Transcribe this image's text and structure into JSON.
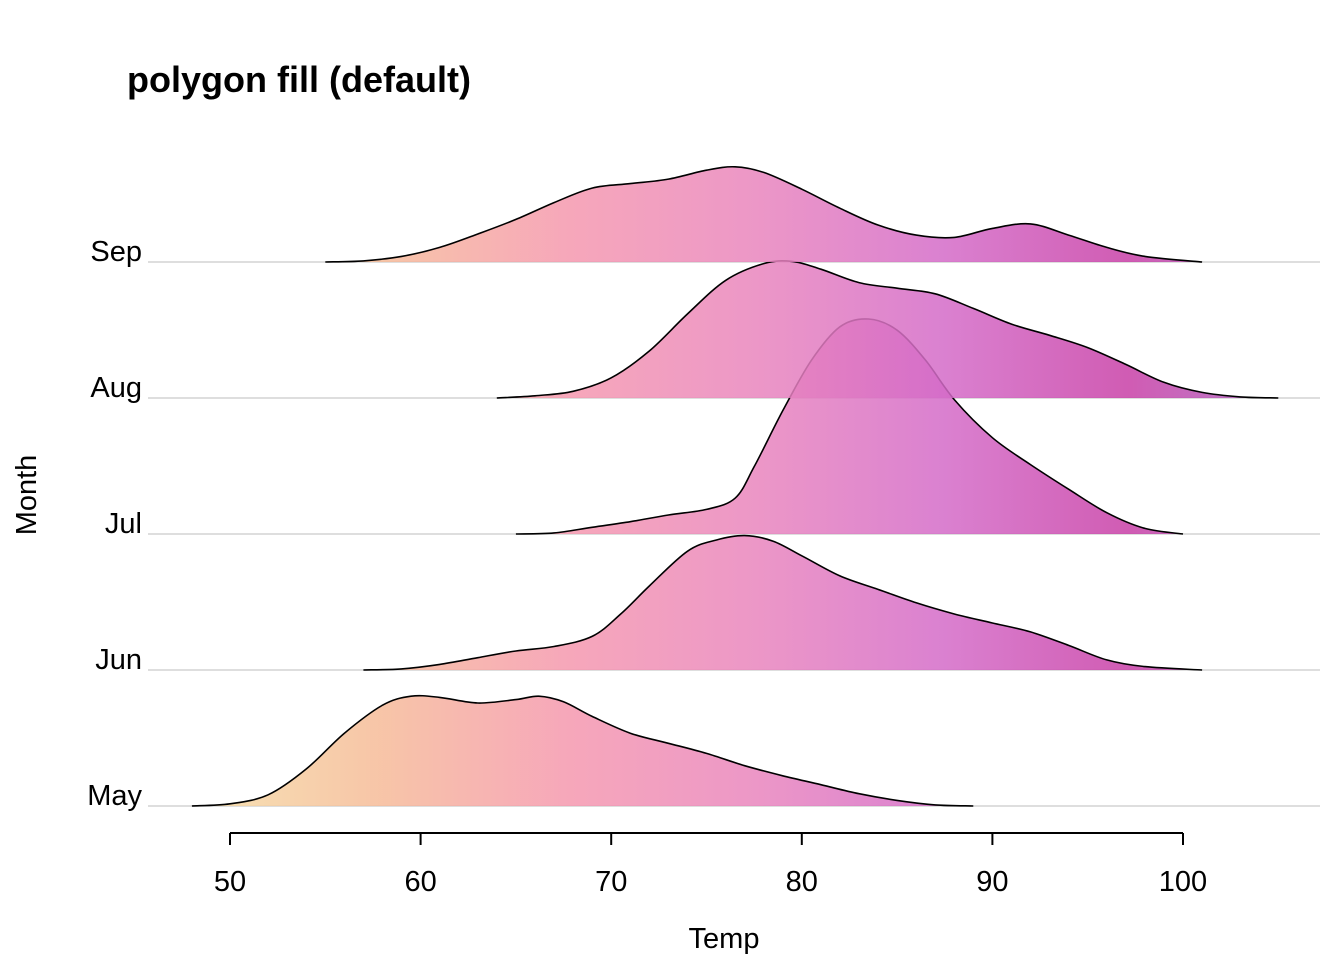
{
  "chart_data": {
    "type": "area",
    "title": "polygon fill (default)",
    "xlabel": "Temp",
    "ylabel": "Month",
    "xlim": [
      48,
      107
    ],
    "x_ticks": [
      50,
      60,
      70,
      80,
      90,
      100
    ],
    "x_tick_labels": [
      "50",
      "60",
      "70",
      "80",
      "90",
      "100"
    ],
    "categories": [
      "May",
      "Jun",
      "Jul",
      "Aug",
      "Sep"
    ],
    "colormap": [
      "#f5dea6",
      "#f6bb98",
      "#f598ae",
      "#e985bd",
      "#d46bc8",
      "#c83fa6",
      "#a56fc8"
    ],
    "fill_opacity": 0.85,
    "series": [
      {
        "name": "May",
        "points": [
          [
            48,
            0
          ],
          [
            50,
            0.02
          ],
          [
            52,
            0.1
          ],
          [
            54,
            0.33
          ],
          [
            56,
            0.65
          ],
          [
            58,
            0.9
          ],
          [
            59.5,
            0.98
          ],
          [
            61,
            0.97
          ],
          [
            63,
            0.92
          ],
          [
            65,
            0.95
          ],
          [
            66.2,
            0.98
          ],
          [
            67.5,
            0.93
          ],
          [
            69,
            0.8
          ],
          [
            71,
            0.65
          ],
          [
            73,
            0.56
          ],
          [
            75,
            0.47
          ],
          [
            77,
            0.36
          ],
          [
            79,
            0.27
          ],
          [
            81,
            0.19
          ],
          [
            83,
            0.11
          ],
          [
            85,
            0.05
          ],
          [
            87,
            0.01
          ],
          [
            89,
            0
          ]
        ]
      },
      {
        "name": "Jun",
        "points": [
          [
            57,
            0
          ],
          [
            59,
            0.01
          ],
          [
            61,
            0.05
          ],
          [
            63,
            0.11
          ],
          [
            65,
            0.17
          ],
          [
            67,
            0.21
          ],
          [
            69,
            0.3
          ],
          [
            70.5,
            0.5
          ],
          [
            72,
            0.75
          ],
          [
            74,
            1.06
          ],
          [
            75.5,
            1.16
          ],
          [
            77,
            1.2
          ],
          [
            78.5,
            1.15
          ],
          [
            80,
            1.02
          ],
          [
            82,
            0.84
          ],
          [
            84,
            0.72
          ],
          [
            86,
            0.6
          ],
          [
            88,
            0.5
          ],
          [
            90,
            0.42
          ],
          [
            92,
            0.34
          ],
          [
            94,
            0.22
          ],
          [
            96,
            0.09
          ],
          [
            98,
            0.03
          ],
          [
            101,
            0
          ]
        ]
      },
      {
        "name": "Jul",
        "points": [
          [
            65,
            0
          ],
          [
            67,
            0.01
          ],
          [
            69,
            0.06
          ],
          [
            71,
            0.11
          ],
          [
            73,
            0.17
          ],
          [
            75,
            0.22
          ],
          [
            76.5,
            0.32
          ],
          [
            77.5,
            0.6
          ],
          [
            79,
            1.1
          ],
          [
            80.5,
            1.55
          ],
          [
            82,
            1.85
          ],
          [
            83.5,
            1.92
          ],
          [
            85,
            1.82
          ],
          [
            86.5,
            1.55
          ],
          [
            88,
            1.2
          ],
          [
            90,
            0.86
          ],
          [
            92,
            0.62
          ],
          [
            94,
            0.4
          ],
          [
            96,
            0.19
          ],
          [
            98,
            0.05
          ],
          [
            100,
            0
          ]
        ]
      },
      {
        "name": "Aug",
        "points": [
          [
            64,
            0
          ],
          [
            66,
            0.02
          ],
          [
            68,
            0.06
          ],
          [
            70,
            0.18
          ],
          [
            72,
            0.42
          ],
          [
            74,
            0.75
          ],
          [
            76,
            1.05
          ],
          [
            78,
            1.2
          ],
          [
            79.5,
            1.22
          ],
          [
            81,
            1.15
          ],
          [
            83,
            1.03
          ],
          [
            85,
            0.98
          ],
          [
            87,
            0.93
          ],
          [
            89,
            0.8
          ],
          [
            91,
            0.66
          ],
          [
            93,
            0.56
          ],
          [
            95,
            0.45
          ],
          [
            97,
            0.3
          ],
          [
            99,
            0.14
          ],
          [
            101,
            0.05
          ],
          [
            103,
            0.01
          ],
          [
            105,
            0
          ]
        ]
      },
      {
        "name": "Sep",
        "points": [
          [
            55,
            0
          ],
          [
            57,
            0.01
          ],
          [
            59,
            0.05
          ],
          [
            61,
            0.13
          ],
          [
            63,
            0.25
          ],
          [
            65,
            0.38
          ],
          [
            67,
            0.53
          ],
          [
            69,
            0.66
          ],
          [
            71,
            0.7
          ],
          [
            73,
            0.74
          ],
          [
            75,
            0.82
          ],
          [
            76.5,
            0.85
          ],
          [
            78,
            0.8
          ],
          [
            80,
            0.65
          ],
          [
            82,
            0.48
          ],
          [
            84,
            0.33
          ],
          [
            86,
            0.24
          ],
          [
            88,
            0.22
          ],
          [
            90,
            0.3
          ],
          [
            92,
            0.34
          ],
          [
            94,
            0.24
          ],
          [
            96,
            0.13
          ],
          [
            98,
            0.05
          ],
          [
            101,
            0
          ]
        ]
      }
    ]
  }
}
